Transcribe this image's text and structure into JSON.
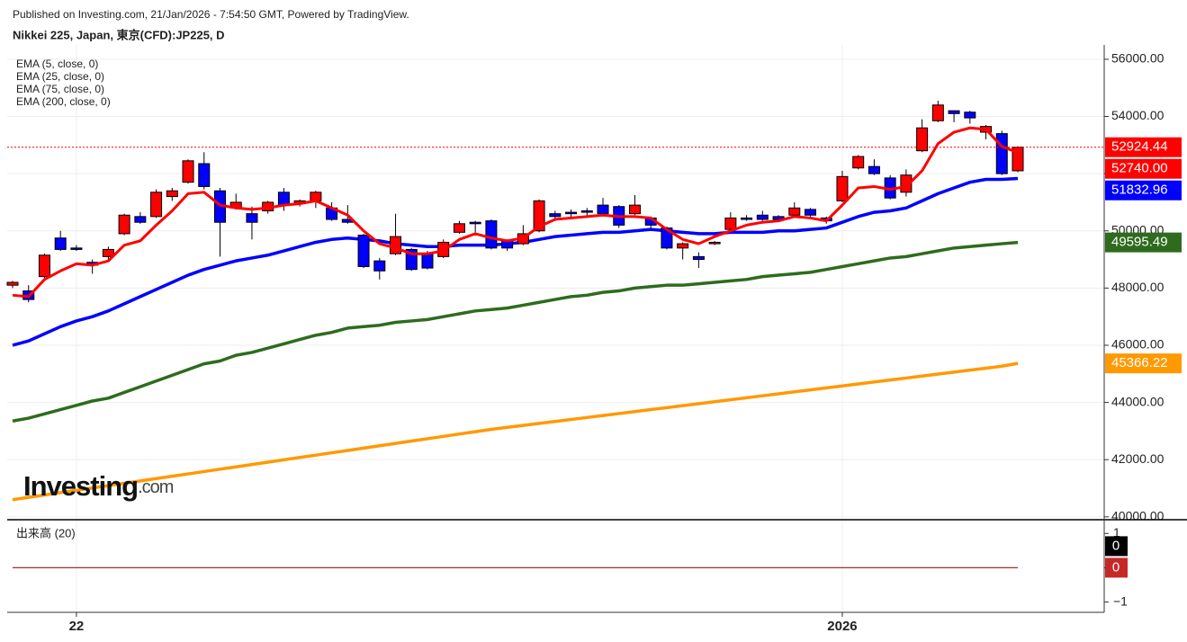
{
  "header": {
    "published": "Published on Investing.com, 21/Jan/2026 - 7:54:50 GMT, Powered by TradingView.",
    "symbol": "Nikkei 225, Japan, 東京(CFD):JP225, D"
  },
  "logo": {
    "brand": "Investing",
    "suffix": ".com"
  },
  "chart_data": {
    "type": "candlestick",
    "categories": [
      null,
      null,
      null,
      null,
      "22",
      null,
      null,
      null,
      null,
      null,
      null,
      null,
      null,
      null,
      null,
      null,
      null,
      null,
      null,
      null,
      null,
      null,
      null,
      null,
      null,
      null,
      null,
      null,
      null,
      null,
      null,
      null,
      null,
      null,
      null,
      null,
      null,
      null,
      null,
      null,
      null,
      null,
      null,
      null,
      null,
      null,
      null,
      null,
      null,
      null,
      null,
      null,
      "2026",
      null,
      null,
      null,
      null,
      null,
      null,
      null,
      null,
      null,
      null,
      null
    ],
    "candles": {
      "up_color": "#ff0000",
      "down_color": "#0000ff",
      "open": [
        48100,
        47900,
        48400,
        49750,
        49400,
        48900,
        49100,
        49900,
        50500,
        50500,
        51200,
        51700,
        52350,
        51400,
        50800,
        50600,
        50700,
        51350,
        50950,
        51050,
        50800,
        50400,
        49850,
        48950,
        49200,
        49350,
        49200,
        49100,
        49950,
        50300,
        50350,
        49650,
        49550,
        50000,
        50600,
        50650,
        50700,
        50900,
        50850,
        50600,
        50450,
        50100,
        49400,
        49100,
        49550,
        50050,
        50450,
        50550,
        50500,
        50550,
        50750,
        50450,
        51050,
        52200,
        52250,
        51850,
        51350,
        52800,
        53850,
        54200,
        54150,
        53450,
        53400,
        52100
      ],
      "high": [
        48250,
        48100,
        49200,
        50000,
        49500,
        49000,
        49450,
        50600,
        50650,
        51450,
        51500,
        52500,
        52750,
        51500,
        51300,
        50850,
        51050,
        51500,
        51100,
        51400,
        51000,
        50900,
        49900,
        49050,
        50600,
        49400,
        49300,
        49700,
        50350,
        50350,
        50400,
        49700,
        50200,
        51100,
        50700,
        50750,
        50800,
        51150,
        50900,
        51250,
        50500,
        50150,
        49600,
        49250,
        49650,
        50650,
        50550,
        50700,
        50550,
        51000,
        50800,
        50500,
        52100,
        52650,
        52500,
        51950,
        52150,
        53900,
        54550,
        54200,
        54200,
        53700,
        53500,
        52950
      ],
      "low": [
        48000,
        47500,
        48350,
        49300,
        49300,
        48500,
        49000,
        49850,
        50250,
        50450,
        51050,
        51650,
        51450,
        49100,
        50750,
        49700,
        50600,
        50700,
        50850,
        50800,
        50350,
        50250,
        48700,
        48300,
        49150,
        48600,
        48650,
        49050,
        49900,
        49950,
        49350,
        49300,
        49500,
        49950,
        50350,
        50400,
        50500,
        50500,
        50100,
        50550,
        50100,
        49350,
        49000,
        48700,
        49500,
        50000,
        50350,
        50350,
        50350,
        50500,
        50500,
        50250,
        51000,
        52150,
        51950,
        51100,
        51200,
        52750,
        53800,
        53800,
        53750,
        53200,
        51950,
        52050
      ],
      "close": [
        48200,
        47600,
        49150,
        49350,
        49350,
        48800,
        49350,
        50550,
        50300,
        51350,
        51400,
        52450,
        51550,
        50300,
        51000,
        50300,
        51000,
        50900,
        51050,
        51350,
        50400,
        50300,
        48750,
        48600,
        49800,
        48650,
        48700,
        49600,
        50250,
        50250,
        49400,
        49400,
        49900,
        51050,
        50500,
        50600,
        50650,
        50600,
        50200,
        50900,
        50200,
        49400,
        49550,
        49000,
        49600,
        50450,
        50400,
        50400,
        50400,
        50800,
        50550,
        50350,
        51900,
        52600,
        52000,
        51150,
        51950,
        53600,
        54400,
        54100,
        53950,
        53650,
        52000,
        52924.44
      ]
    },
    "series": [
      {
        "name": "EMA (5, close, 0)",
        "color": "#ff0000",
        "last_label": "52740.00",
        "values": [
          47750,
          47700,
          48300,
          48600,
          48850,
          48800,
          48950,
          49500,
          49650,
          50200,
          50700,
          51300,
          51350,
          50900,
          50800,
          50750,
          50800,
          50900,
          50950,
          51050,
          50800,
          50550,
          50000,
          49550,
          49400,
          49200,
          49200,
          49300,
          49700,
          49900,
          49750,
          49650,
          49750,
          50150,
          50400,
          50450,
          50500,
          50550,
          50500,
          50500,
          50450,
          50050,
          49700,
          49550,
          49800,
          50000,
          50200,
          50300,
          50350,
          50500,
          50450,
          50350,
          50900,
          51500,
          51550,
          51450,
          51550,
          52100,
          53050,
          53450,
          53600,
          53550,
          52950,
          52740
        ]
      },
      {
        "name": "EMA (25, close, 0)",
        "color": "#0000ff",
        "last_label": "51832.96",
        "values": [
          46000,
          46150,
          46400,
          46650,
          46850,
          47000,
          47200,
          47450,
          47700,
          47950,
          48200,
          48450,
          48650,
          48800,
          48950,
          49050,
          49150,
          49300,
          49450,
          49600,
          49700,
          49750,
          49700,
          49650,
          49550,
          49500,
          49450,
          49450,
          49500,
          49500,
          49500,
          49550,
          49600,
          49700,
          49800,
          49850,
          49900,
          49950,
          49950,
          50000,
          50050,
          50000,
          49950,
          49900,
          49900,
          49950,
          49950,
          49950,
          50000,
          50000,
          50050,
          50100,
          50300,
          50500,
          50650,
          50700,
          50800,
          51050,
          51300,
          51500,
          51700,
          51800,
          51800,
          51832.96
        ]
      },
      {
        "name": "EMA (75, close, 0)",
        "color": "#2e6b1e",
        "last_label": "49595.49",
        "values": [
          43350,
          43450,
          43600,
          43750,
          43900,
          44050,
          44150,
          44350,
          44550,
          44750,
          44950,
          45150,
          45350,
          45450,
          45650,
          45750,
          45900,
          46050,
          46200,
          46350,
          46450,
          46600,
          46650,
          46700,
          46800,
          46850,
          46900,
          47000,
          47100,
          47200,
          47250,
          47300,
          47400,
          47500,
          47600,
          47700,
          47750,
          47850,
          47900,
          48000,
          48050,
          48100,
          48100,
          48150,
          48200,
          48250,
          48300,
          48400,
          48450,
          48500,
          48550,
          48650,
          48750,
          48850,
          48950,
          49050,
          49100,
          49200,
          49300,
          49400,
          49450,
          49500,
          49550,
          49595.49
        ]
      },
      {
        "name": "EMA (200, close, 0)",
        "color": "#ff9900",
        "last_label": "45366.22",
        "values": [
          40600,
          40682,
          40764,
          40846,
          40928,
          41010,
          41092,
          41174,
          41256,
          41338,
          41420,
          41502,
          41584,
          41666,
          41748,
          41830,
          41912,
          41994,
          42076,
          42158,
          42240,
          42322,
          42404,
          42486,
          42568,
          42650,
          42732,
          42814,
          42896,
          42978,
          43060,
          43129,
          43198,
          43267,
          43336,
          43405,
          43474,
          43543,
          43612,
          43681,
          43750,
          43819,
          43888,
          43957,
          44026,
          44095,
          44164,
          44233,
          44302,
          44371,
          44440,
          44509,
          44578,
          44647,
          44716,
          44785,
          44854,
          44923,
          44992,
          45061,
          45130,
          45199,
          45268,
          45366.22
        ]
      }
    ],
    "ylim": [
      39900,
      56500
    ],
    "yticks": [
      {
        "value": 40000,
        "label": "40000.00"
      },
      {
        "value": 42000,
        "label": "42000.00"
      },
      {
        "value": 44000,
        "label": "44000.00"
      },
      {
        "value": 46000,
        "label": "46000.00"
      },
      {
        "value": 48000,
        "label": "48000.00"
      },
      {
        "value": 50000,
        "label": "50000.00"
      },
      {
        "value": 52000,
        "label": "52000.00"
      },
      {
        "value": 54000,
        "label": "54000.00"
      },
      {
        "value": 56000,
        "label": "56000.00"
      }
    ],
    "grid": true,
    "volume": {
      "label": "出来高 (20)",
      "ylim": [
        -1.3,
        1.4
      ],
      "yticks": [
        1,
        0,
        {
          "value": -1,
          "label": "−1"
        }
      ],
      "series": [
        {
          "color": "#000000",
          "values": [
            0,
            0,
            0,
            0,
            0,
            0,
            0,
            0,
            0,
            0,
            0,
            0,
            0,
            0,
            0,
            0,
            0,
            0,
            0,
            0,
            0,
            0,
            0,
            0,
            0,
            0,
            0,
            0,
            0,
            0,
            0,
            0,
            0,
            0,
            0,
            0,
            0,
            0,
            0,
            0,
            0,
            0,
            0,
            0,
            0,
            0,
            0,
            0,
            0,
            0,
            0,
            0,
            0,
            0,
            0,
            0,
            0,
            0,
            0,
            0,
            0,
            0,
            0,
            0
          ]
        },
        {
          "color": "#c62828",
          "values": [
            0,
            0,
            0,
            0,
            0,
            0,
            0,
            0,
            0,
            0,
            0,
            0,
            0,
            0,
            0,
            0,
            0,
            0,
            0,
            0,
            0,
            0,
            0,
            0,
            0,
            0,
            0,
            0,
            0,
            0,
            0,
            0,
            0,
            0,
            0,
            0,
            0,
            0,
            0,
            0,
            0,
            0,
            0,
            0,
            0,
            0,
            0,
            0,
            0,
            0,
            0,
            0,
            0,
            0,
            0,
            0,
            0,
            0,
            0,
            0,
            0,
            0,
            0,
            0
          ]
        }
      ]
    }
  }
}
